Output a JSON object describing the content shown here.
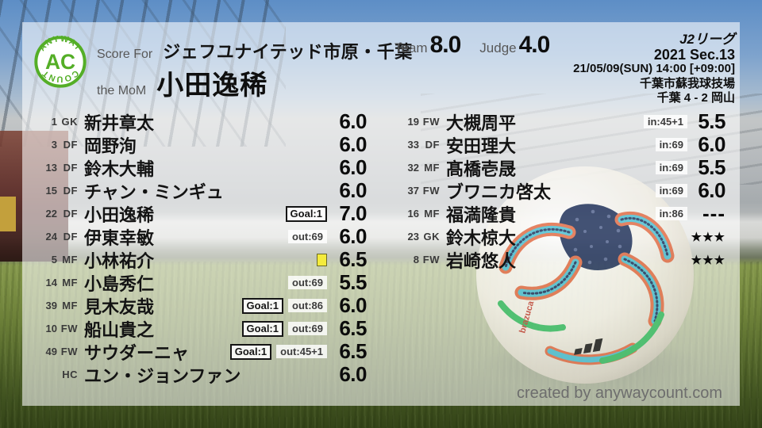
{
  "branding": {
    "logo": {
      "arc_top": "ANYWAY",
      "center": "AC",
      "arc_bottom": "COUNT",
      "color": "#54ae27"
    },
    "footer_credit": "created by anywaycount.com"
  },
  "header": {
    "score_for_label": "Score For",
    "team_name": "ジェフユナイテッド市原・千葉",
    "mom_label": "the MoM",
    "mom_name": "小田逸稀",
    "team_rating_label": "Team",
    "team_rating": "8.0",
    "judge_rating_label": "Judge",
    "judge_rating": "4.0"
  },
  "match_info": {
    "competition": "J2リーグ",
    "season_round": "2021 Sec.13",
    "kickoff": "21/05/09(SUN) 14:00 [+09:00]",
    "venue": "千葉市蘇我球技場",
    "score_line": "千葉 4 - 2 岡山"
  },
  "colors": {
    "yellow_card": "#f4eb3c",
    "logo_green": "#54ae27"
  },
  "starters": [
    {
      "num": "1",
      "pos": "GK",
      "name": "新井章太",
      "rating": "6.0"
    },
    {
      "num": "3",
      "pos": "DF",
      "name": "岡野洵",
      "rating": "6.0"
    },
    {
      "num": "13",
      "pos": "DF",
      "name": "鈴木大輔",
      "rating": "6.0"
    },
    {
      "num": "15",
      "pos": "DF",
      "name": "チャン・ミンギュ",
      "rating": "6.0"
    },
    {
      "num": "22",
      "pos": "DF",
      "name": "小田逸稀",
      "goal": "Goal:1",
      "rating": "7.0"
    },
    {
      "num": "24",
      "pos": "DF",
      "name": "伊東幸敏",
      "sub": "out:69",
      "rating": "6.0"
    },
    {
      "num": "5",
      "pos": "MF",
      "name": "小林祐介",
      "card": "yellow",
      "rating": "6.5"
    },
    {
      "num": "14",
      "pos": "MF",
      "name": "小島秀仁",
      "sub": "out:69",
      "rating": "5.5"
    },
    {
      "num": "39",
      "pos": "MF",
      "name": "見木友哉",
      "goal": "Goal:1",
      "sub": "out:86",
      "rating": "6.0"
    },
    {
      "num": "10",
      "pos": "FW",
      "name": "船山貴之",
      "goal": "Goal:1",
      "sub": "out:69",
      "rating": "6.5"
    },
    {
      "num": "49",
      "pos": "FW",
      "name": "サウダーニャ",
      "goal": "Goal:1",
      "sub": "out:45+1",
      "rating": "6.5"
    },
    {
      "num": "",
      "pos": "HC",
      "name": "ユン・ジョンファン",
      "rating": "6.0"
    }
  ],
  "substitutes": [
    {
      "num": "19",
      "pos": "FW",
      "name": "大槻周平",
      "sub": "in:45+1",
      "rating": "5.5"
    },
    {
      "num": "33",
      "pos": "DF",
      "name": "安田理大",
      "sub": "in:69",
      "rating": "6.0"
    },
    {
      "num": "32",
      "pos": "MF",
      "name": "髙橋壱晟",
      "sub": "in:69",
      "rating": "5.5"
    },
    {
      "num": "37",
      "pos": "FW",
      "name": "ブワニカ啓太",
      "sub": "in:69",
      "rating": "6.0"
    },
    {
      "num": "16",
      "pos": "MF",
      "name": "福満隆貴",
      "sub": "in:86",
      "rating": "---"
    },
    {
      "num": "23",
      "pos": "GK",
      "name": "鈴木椋大",
      "rating": "★★★"
    },
    {
      "num": "8",
      "pos": "FW",
      "name": "岩崎悠人",
      "rating": "★★★"
    }
  ]
}
